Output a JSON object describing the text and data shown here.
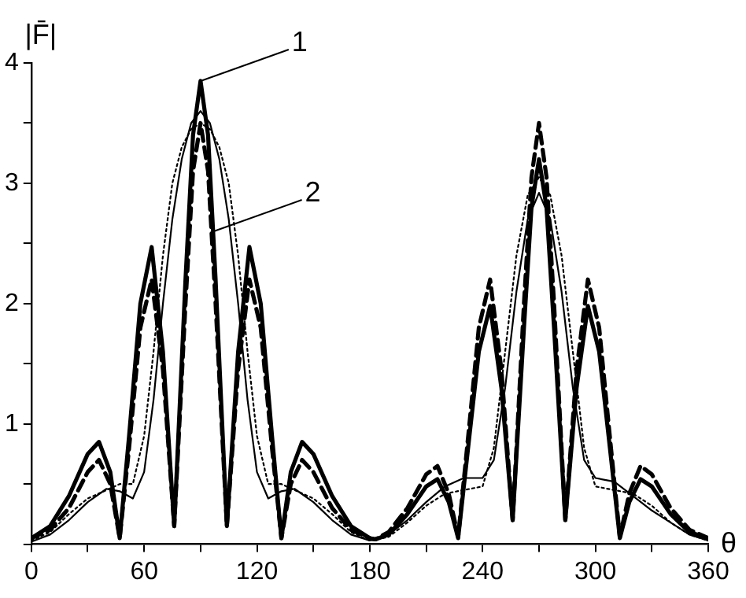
{
  "chart_data": {
    "type": "line",
    "xlabel": "θ",
    "ylabel": "|F̄|",
    "xlim": [
      0,
      360
    ],
    "xticks": [
      0,
      {
        "value": 30,
        "label": null
      },
      60,
      {
        "value": 90,
        "label": null
      },
      120,
      {
        "value": 150,
        "label": null
      },
      180,
      {
        "value": 210,
        "label": null
      },
      240,
      {
        "value": 270,
        "label": null
      },
      300,
      {
        "value": 330,
        "label": null
      },
      360
    ],
    "ylim": [
      0,
      4
    ],
    "yticks": [
      {
        "value": 0,
        "label": null
      },
      {
        "value": 0.5,
        "label": null
      },
      1,
      {
        "value": 1.5,
        "label": null
      },
      2,
      {
        "value": 2.5,
        "label": null
      },
      3,
      {
        "value": 3.5,
        "label": null
      },
      4
    ],
    "grid": false,
    "legend": false,
    "marker": "none",
    "annotations": [
      {
        "text": "1",
        "x": 90,
        "y": 3.85
      },
      {
        "text": "2",
        "x": 97,
        "y": 2.6
      }
    ],
    "series": [
      {
        "color": "#000000",
        "line_style": "solid",
        "x": [
          0,
          10,
          20,
          30,
          36,
          42,
          47,
          52,
          58,
          64,
          70,
          76,
          82,
          86,
          90,
          94,
          98,
          104,
          110,
          116,
          122,
          128,
          133,
          138,
          144,
          150,
          160,
          170,
          180,
          183,
          190,
          200,
          210,
          216,
          222,
          227,
          233,
          238,
          244,
          250,
          256,
          262,
          266,
          270,
          274,
          278,
          284,
          290,
          296,
          302,
          307,
          313,
          318,
          324,
          330,
          340,
          350,
          360
        ],
        "values": [
          0.05,
          0.15,
          0.4,
          0.75,
          0.85,
          0.6,
          0.05,
          0.9,
          2.0,
          2.47,
          1.6,
          0.15,
          2.2,
          3.4,
          3.85,
          3.4,
          2.2,
          0.15,
          1.6,
          2.47,
          2.0,
          0.9,
          0.05,
          0.6,
          0.85,
          0.75,
          0.4,
          0.15,
          0.05,
          0.04,
          0.08,
          0.25,
          0.48,
          0.54,
          0.35,
          0.05,
          0.9,
          1.6,
          1.98,
          1.3,
          0.2,
          1.8,
          2.8,
          3.2,
          2.8,
          1.8,
          0.2,
          1.3,
          1.98,
          1.6,
          0.9,
          0.05,
          0.35,
          0.54,
          0.48,
          0.25,
          0.1,
          0.05
        ]
      },
      {
        "color": "#000000",
        "line_style": "dashed",
        "x": [
          0,
          10,
          20,
          30,
          36,
          42,
          47,
          52,
          58,
          64,
          70,
          76,
          82,
          86,
          90,
          94,
          98,
          104,
          110,
          116,
          122,
          128,
          133,
          138,
          144,
          150,
          160,
          170,
          180,
          183,
          190,
          200,
          210,
          216,
          222,
          227,
          233,
          238,
          244,
          250,
          256,
          262,
          266,
          270,
          274,
          278,
          284,
          290,
          296,
          302,
          307,
          313,
          318,
          324,
          330,
          340,
          350,
          360
        ],
        "values": [
          0.05,
          0.12,
          0.3,
          0.6,
          0.7,
          0.5,
          0.05,
          0.8,
          1.8,
          2.2,
          1.45,
          0.15,
          2.0,
          3.1,
          3.5,
          3.1,
          2.0,
          0.15,
          1.45,
          2.2,
          1.8,
          0.8,
          0.05,
          0.5,
          0.7,
          0.6,
          0.3,
          0.12,
          0.05,
          0.04,
          0.1,
          0.3,
          0.58,
          0.65,
          0.42,
          0.06,
          1.0,
          1.8,
          2.2,
          1.45,
          0.2,
          2.0,
          3.05,
          3.5,
          3.05,
          2.0,
          0.2,
          1.45,
          2.2,
          1.8,
          1.0,
          0.06,
          0.42,
          0.65,
          0.58,
          0.3,
          0.12,
          0.05
        ]
      },
      {
        "color": "#000000",
        "line_style": "solid",
        "x": [
          0,
          10,
          20,
          30,
          40,
          47,
          54,
          60,
          65,
          70,
          75,
          80,
          85,
          90,
          95,
          100,
          105,
          110,
          115,
          120,
          126,
          133,
          140,
          150,
          160,
          170,
          180,
          190,
          200,
          210,
          220,
          230,
          240,
          246,
          252,
          258,
          264,
          270,
          276,
          282,
          288,
          294,
          300,
          310,
          320,
          330,
          340,
          350,
          360
        ],
        "values": [
          0.02,
          0.08,
          0.2,
          0.35,
          0.46,
          0.44,
          0.38,
          0.6,
          1.2,
          2.0,
          2.7,
          3.2,
          3.5,
          3.6,
          3.5,
          3.2,
          2.7,
          2.0,
          1.2,
          0.6,
          0.38,
          0.44,
          0.46,
          0.35,
          0.2,
          0.08,
          0.03,
          0.08,
          0.2,
          0.35,
          0.48,
          0.55,
          0.55,
          0.7,
          1.3,
          2.1,
          2.7,
          2.92,
          2.7,
          2.1,
          1.3,
          0.7,
          0.55,
          0.52,
          0.4,
          0.28,
          0.18,
          0.08,
          0.03
        ]
      },
      {
        "color": "#000000",
        "line_style": "dotted",
        "x": [
          0,
          10,
          20,
          30,
          40,
          47,
          54,
          60,
          65,
          70,
          75,
          80,
          85,
          90,
          95,
          100,
          105,
          110,
          115,
          120,
          126,
          133,
          140,
          150,
          160,
          170,
          180,
          190,
          200,
          210,
          220,
          230,
          240,
          246,
          252,
          258,
          264,
          270,
          276,
          282,
          288,
          294,
          300,
          310,
          320,
          330,
          340,
          350,
          360
        ],
        "values": [
          0.03,
          0.1,
          0.25,
          0.38,
          0.45,
          0.5,
          0.5,
          0.9,
          1.6,
          2.4,
          3.0,
          3.3,
          3.45,
          3.5,
          3.45,
          3.3,
          3.0,
          2.4,
          1.6,
          0.9,
          0.5,
          0.5,
          0.45,
          0.38,
          0.25,
          0.1,
          0.03,
          0.06,
          0.18,
          0.32,
          0.42,
          0.45,
          0.48,
          0.8,
          1.6,
          2.4,
          2.9,
          3.05,
          2.9,
          2.4,
          1.6,
          0.8,
          0.48,
          0.45,
          0.42,
          0.32,
          0.18,
          0.08,
          0.03
        ]
      }
    ]
  }
}
